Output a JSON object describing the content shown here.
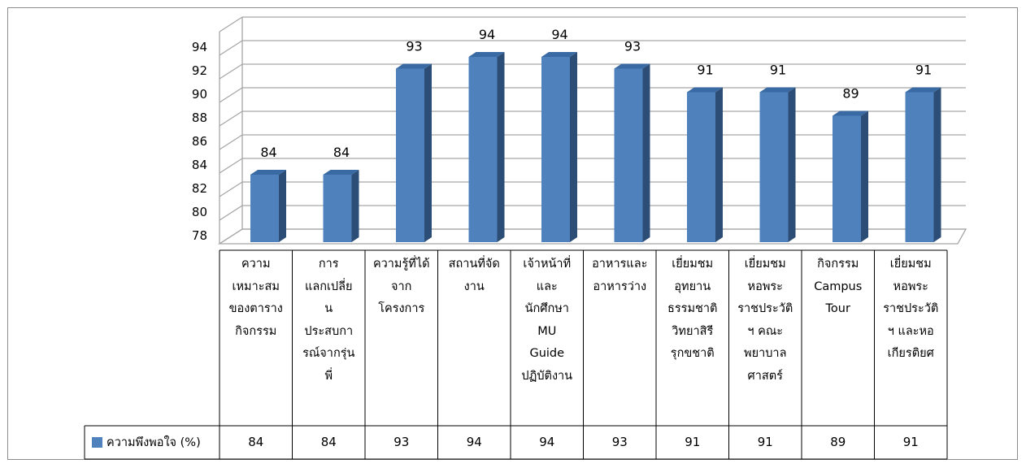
{
  "chart_data": {
    "type": "bar",
    "three_d": true,
    "categories": [
      "ความ\nเหมาะสม\nของตาราง\nกิจกรรม",
      "การ\nแลกเปลี่ย\nน\nประสบกา\nรณ์จากรุ่น\nพี่",
      "ความรู้ที่ได้\nจาก\nโครงการ",
      "สถานที่จัด\nงาน",
      "เจ้าหน้าที่\nและ\nนักศึกษา\nMU\nGuide\nปฏิบัติงาน",
      "อาหารและ\nอาหารว่าง",
      "เยี่ยมชม\nอุทยาน\nธรรมชาติ\nวิทยาสิรี\nรุกขชาติ",
      "เยี่ยมชม\nหอพระ\nราชประวัติ\nฯ คณะ\nพยาบาล\nศาสตร์",
      "กิจกรรม\nCampus\nTour",
      "เยี่ยมชม\nหอพระ\nราชประวัติ\nฯ และหอ\nเกียรติยศ"
    ],
    "series": [
      {
        "name": "ความพึงพอใจ (%)",
        "values": [
          84,
          84,
          93,
          94,
          94,
          93,
          91,
          91,
          89,
          91
        ]
      }
    ],
    "data_labels": [
      "84",
      "84",
      "93",
      "94",
      "94",
      "93",
      "91",
      "91",
      "89",
      "91"
    ],
    "table_values": [
      "84",
      "84",
      "93",
      "94",
      "94",
      "93",
      "91",
      "91",
      "89",
      "91"
    ],
    "y_ticks": [
      "78",
      "80",
      "82",
      "84",
      "86",
      "88",
      "90",
      "92",
      "94"
    ],
    "ylim": [
      78,
      94
    ],
    "grid": true,
    "legend": "data-table",
    "colors": {
      "bar_front": "#4f81bd",
      "bar_side": "#2c4d75",
      "bar_top": "#3a6aa3",
      "grid": "#a6a6a6"
    }
  }
}
